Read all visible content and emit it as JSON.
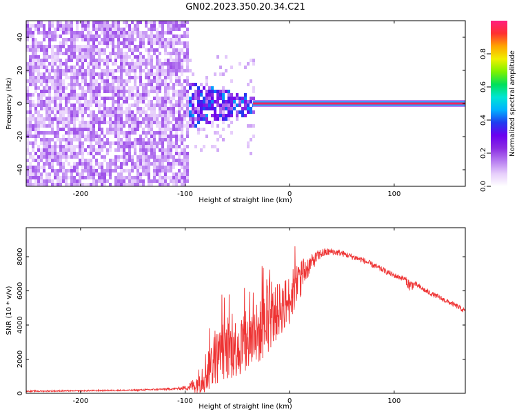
{
  "title": "GN02.2023.350.20.34.C21",
  "colorbar": {
    "label": "Normalized spectral amplitude",
    "ticks": [
      "0.0",
      "0.2",
      "0.4",
      "0.6",
      "0.8"
    ],
    "tick_values": [
      0.0,
      0.2,
      0.4,
      0.6,
      0.8
    ],
    "range": [
      0,
      1
    ],
    "colormap": [
      "#ffffff",
      "#e6cdfb",
      "#b67bf0",
      "#8a2be2",
      "#6a00f0",
      "#1f3df0",
      "#00b2ff",
      "#00e5d5",
      "#00e05a",
      "#7df200",
      "#f0f000",
      "#ffa500",
      "#ff3030",
      "#ff2080"
    ]
  },
  "chart_data": [
    {
      "type": "heatmap",
      "xlabel": "Height of straight line (km)",
      "ylabel": "Frequency (Hz)",
      "xlim": [
        -252,
        168
      ],
      "ylim": [
        -50,
        50
      ],
      "x_ticks": [
        -200,
        -100,
        0,
        100
      ],
      "y_ticks": [
        -40,
        -20,
        0,
        20,
        40
      ],
      "x_tick_labels": [
        "-200",
        "-100",
        "0",
        "100"
      ],
      "y_tick_labels": [
        "-40",
        "-20",
        "0",
        "20",
        "40"
      ],
      "regions": [
        {
          "x_range": [
            -252,
            -97
          ],
          "freq_range": [
            -50,
            50
          ],
          "amplitude": [
            0.05,
            0.2
          ],
          "pattern": "noise"
        },
        {
          "x_range": [
            -97,
            -35
          ],
          "freq_range": [
            -15,
            12
          ],
          "amplitude": [
            0.15,
            0.45
          ],
          "pattern": "scattered"
        },
        {
          "x_range": [
            -35,
            168
          ],
          "freq_range": [
            -1.5,
            1.5
          ],
          "amplitude": [
            0.9,
            1.0
          ],
          "pattern": "carrier"
        }
      ]
    },
    {
      "type": "line",
      "xlabel": "Height of straight line (km)",
      "ylabel": "SNR (10 * v/v)",
      "xlim": [
        -252,
        168
      ],
      "ylim": [
        0,
        9700
      ],
      "x_ticks": [
        -200,
        -100,
        0,
        100
      ],
      "y_ticks": [
        0,
        2000,
        4000,
        6000,
        8000
      ],
      "x_tick_labels": [
        "-200",
        "-100",
        "0",
        "100"
      ],
      "y_tick_labels": [
        "0",
        "2000",
        "4000",
        "6000",
        "8000"
      ],
      "color": "#ee3333",
      "series": [
        {
          "x": [
            -252,
            -200,
            -150,
            -110,
            -100,
            -90,
            -80,
            -70,
            -60,
            -50,
            -40,
            -30,
            -20,
            -10,
            0,
            10,
            20,
            30,
            40,
            50,
            60,
            70,
            80,
            90,
            100,
            110,
            115,
            120,
            130,
            140,
            150,
            160,
            168
          ],
          "center": [
            120,
            150,
            180,
            260,
            320,
            500,
            1300,
            2100,
            2500,
            2700,
            3000,
            3500,
            4200,
            4900,
            5500,
            6800,
            7600,
            8200,
            8300,
            8200,
            8000,
            7800,
            7500,
            7200,
            6900,
            6700,
            6300,
            6400,
            6000,
            5700,
            5400,
            5100,
            4800
          ],
          "spread": [
            40,
            40,
            40,
            60,
            120,
            500,
            1300,
            1600,
            1800,
            1800,
            1900,
            1900,
            1800,
            1600,
            1500,
            1200,
            500,
            300,
            200,
            180,
            180,
            180,
            180,
            160,
            160,
            160,
            400,
            160,
            150,
            150,
            150,
            150,
            150
          ]
        }
      ]
    }
  ]
}
